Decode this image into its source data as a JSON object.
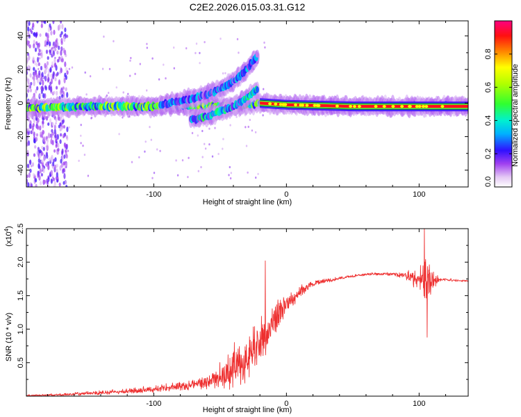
{
  "title": "C2E2.2026.015.03.31.G12",
  "chart_data": [
    {
      "type": "heatmap",
      "name": "spectrogram",
      "xlabel": "Height of straight line (km)",
      "ylabel": "Frequency (Hz)",
      "xlim": [
        -196,
        137
      ],
      "ylim": [
        -50,
        49
      ],
      "xticks": [
        -100,
        0,
        100
      ],
      "xtick_labels": [
        "-100",
        "0",
        "100"
      ],
      "yticks": [
        -40,
        -20,
        0,
        20,
        40
      ],
      "ytick_labels": [
        "-40",
        "-20",
        "0",
        "20",
        "40"
      ],
      "colorbar": {
        "label": "Normalized spectral amplitude",
        "range": [
          0,
          1
        ],
        "ticks": [
          0,
          0.2,
          0.4,
          0.6,
          0.8
        ],
        "tick_labels": [
          "0.0",
          "0.2",
          "0.4",
          "0.6",
          "0.8"
        ]
      },
      "ridges": [
        {
          "name": "main-band",
          "x": [
            -196,
            -150,
            -100,
            -80,
            -60,
            -40,
            -20,
            0,
            50,
            100,
            137
          ],
          "y": [
            -3,
            -2,
            -2,
            -1,
            -2,
            -2,
            0,
            -1,
            -2,
            -2,
            -2
          ],
          "amplitude": 0.55
        },
        {
          "name": "upper-branch",
          "x": [
            -95,
            -80,
            -60,
            -45,
            -35,
            -28,
            -22
          ],
          "y": [
            -1,
            1,
            5,
            10,
            16,
            22,
            28
          ],
          "amplitude": 0.3
        },
        {
          "name": "lower-branch",
          "x": [
            -72,
            -60,
            -50,
            -40,
            -30,
            -22
          ],
          "y": [
            -10,
            -8,
            -5,
            -2,
            3,
            8
          ],
          "amplitude": 0.4
        },
        {
          "name": "steady-line",
          "x": [
            -20,
            0,
            50,
            100,
            137
          ],
          "y": [
            0,
            -1,
            -2,
            -2,
            -2
          ],
          "amplitude": 1.0
        }
      ],
      "noise_region": {
        "x": [
          -196,
          -165
        ],
        "y": [
          -50,
          49
        ],
        "amplitude": 0.12
      }
    },
    {
      "type": "line",
      "name": "snr",
      "xlabel": "Height of straight line (km)",
      "ylabel": "SNR (10 * v/v)",
      "y_multiplier": "(x10",
      "y_multiplier_exp": "4",
      "y_multiplier_close": ")",
      "xlim": [
        -196,
        137
      ],
      "ylim": [
        0,
        2.5
      ],
      "xticks": [
        -100,
        0,
        100
      ],
      "xtick_labels": [
        "-100",
        "0",
        "100"
      ],
      "yticks": [
        0.5,
        1.0,
        1.5,
        2.0,
        2.5
      ],
      "ytick_labels": [
        "0.5",
        "1.0",
        "1.5",
        "2.0",
        "2.5"
      ],
      "color": "#ee3030",
      "envelope": {
        "x": [
          -196,
          -170,
          -150,
          -120,
          -100,
          -80,
          -60,
          -50,
          -40,
          -30,
          -20,
          -10,
          0,
          10,
          20,
          40,
          60,
          80,
          90,
          100,
          105,
          110,
          115,
          137
        ],
        "base": [
          0.01,
          0.02,
          0.04,
          0.07,
          0.1,
          0.14,
          0.2,
          0.28,
          0.38,
          0.55,
          0.75,
          1.1,
          1.35,
          1.55,
          1.68,
          1.76,
          1.82,
          1.82,
          1.8,
          1.72,
          1.7,
          1.74,
          1.74,
          1.72
        ],
        "spread": [
          0.02,
          0.03,
          0.05,
          0.07,
          0.09,
          0.12,
          0.22,
          0.35,
          0.55,
          0.75,
          0.7,
          0.45,
          0.28,
          0.15,
          0.08,
          0.04,
          0.03,
          0.05,
          0.1,
          0.3,
          0.6,
          0.3,
          0.05,
          0.02
        ]
      },
      "peaks": [
        {
          "x": -16,
          "y": 2.02
        },
        {
          "x": 104,
          "y": 2.5
        },
        {
          "x": 106,
          "y": 0.88
        }
      ]
    }
  ]
}
